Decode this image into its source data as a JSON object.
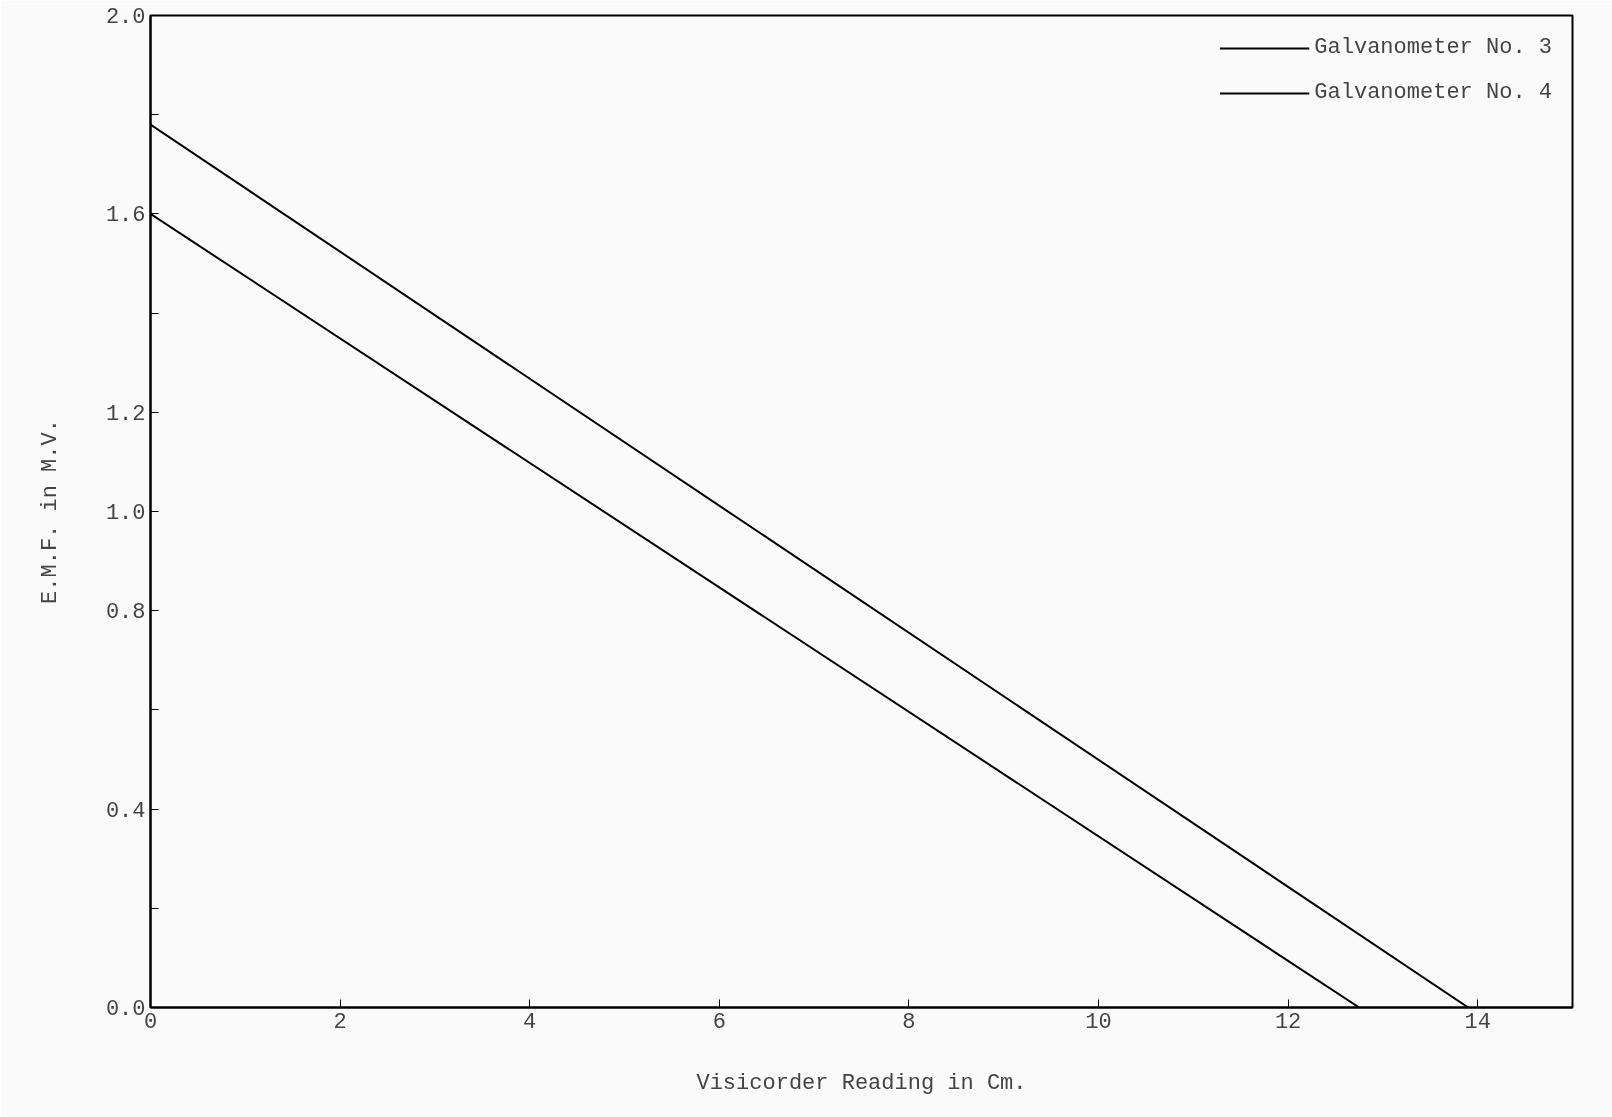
{
  "chart_data": {
    "type": "line",
    "xlabel": "Visicorder Reading in Cm.",
    "ylabel": "E.M.F. in M.V.",
    "series": [
      {
        "name": "Galvanometer No. 3",
        "color": "#000000",
        "x": [
          0,
          13.9
        ],
        "values": [
          1.78,
          0
        ]
      },
      {
        "name": "Galvanometer No. 4",
        "color": "#000000",
        "x": [
          0,
          12.75
        ],
        "values": [
          1.6,
          0
        ]
      }
    ],
    "xlim": [
      0,
      15
    ],
    "ylim": [
      0,
      2.0
    ],
    "xticks": [
      0,
      2,
      4,
      6,
      8,
      10,
      12,
      14
    ],
    "yticks": [
      {
        "value": 0,
        "label": "0.0"
      },
      {
        "value": 0.2,
        "label": null
      },
      {
        "value": 0.4,
        "label": "0.4"
      },
      {
        "value": 0.6,
        "label": null
      },
      {
        "value": 0.8,
        "label": "0.8"
      },
      {
        "value": 1.0,
        "label": "1.0"
      },
      {
        "value": 1.2,
        "label": "1.2"
      },
      {
        "value": 1.4,
        "label": null
      },
      {
        "value": 1.6,
        "label": "1.6"
      },
      {
        "value": 1.8,
        "label": null
      },
      {
        "value": 2.0,
        "label": "2.0"
      }
    ],
    "grid": false,
    "legend": "top right",
    "marker": "none",
    "line_style": "solid"
  }
}
